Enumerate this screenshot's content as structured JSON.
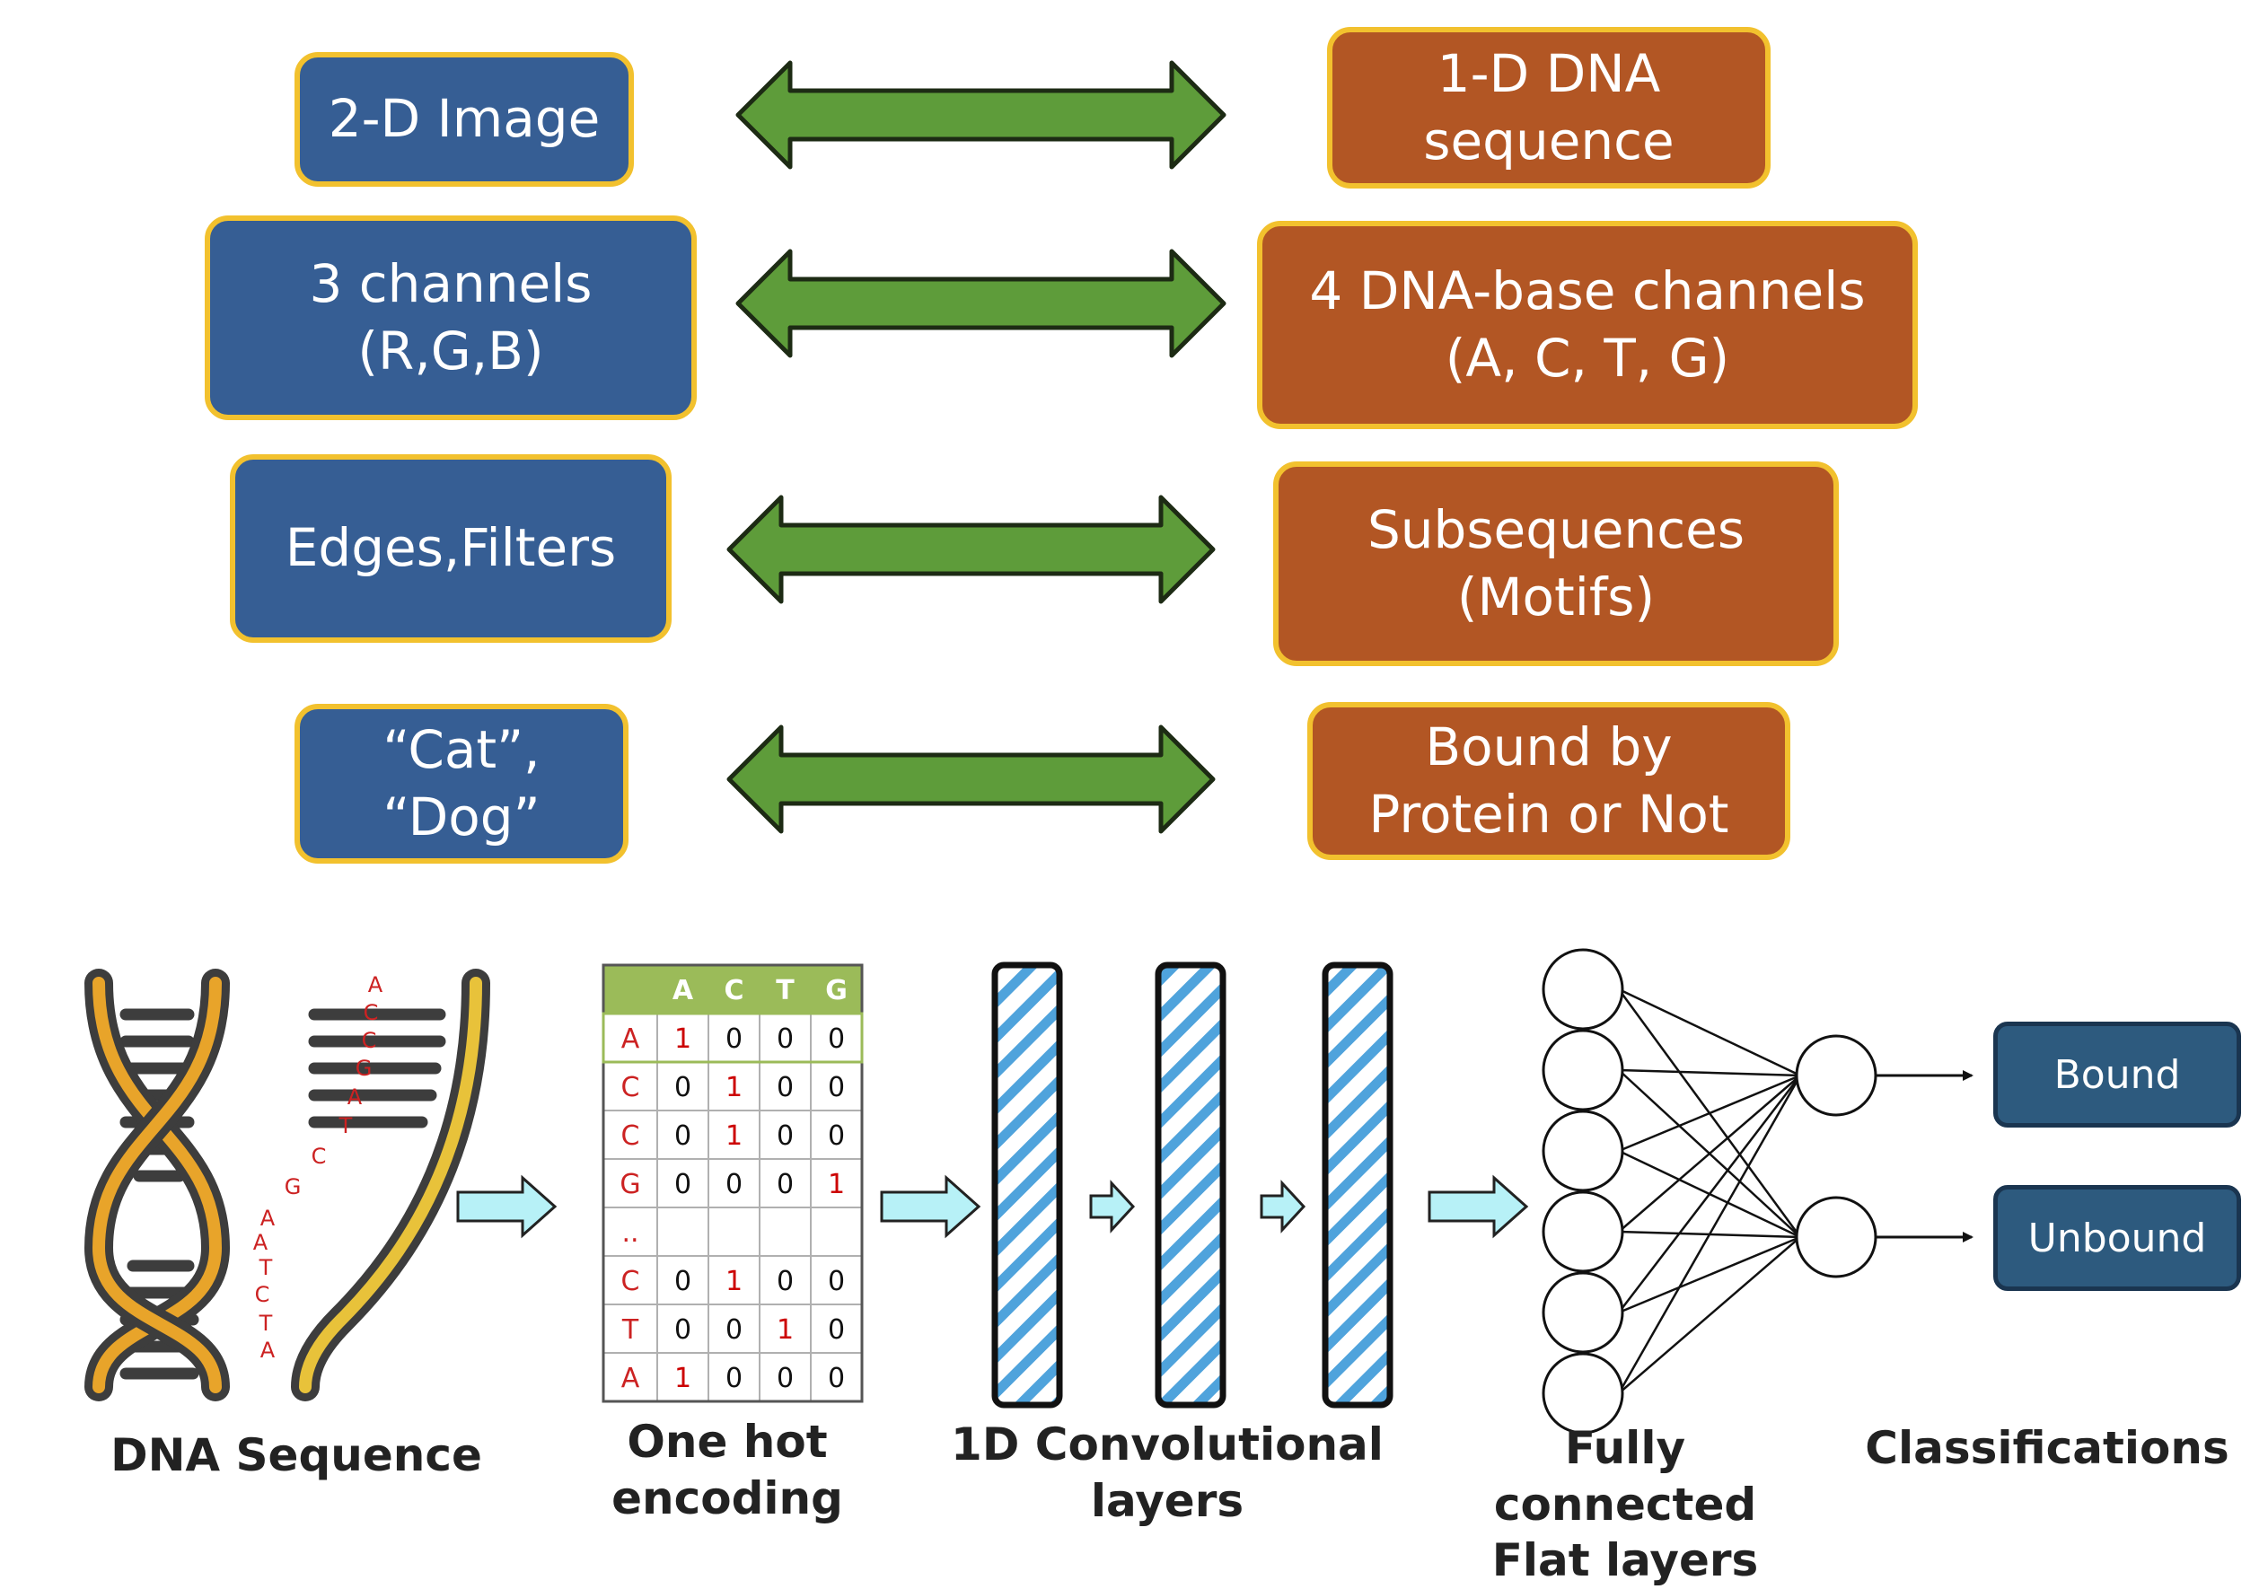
{
  "analogy": {
    "left": [
      {
        "text": "2-D Image"
      },
      {
        "text": "3 channels\n(R,G,B)"
      },
      {
        "text": "Edges,Filters"
      },
      {
        "text": "“Cat”,\n“Dog”"
      }
    ],
    "right": [
      {
        "text": "1-D DNA\nsequence"
      },
      {
        "text": "4 DNA-base channels\n(A, C, T, G)"
      },
      {
        "text": "Subsequences\n(Motifs)"
      },
      {
        "text": "Bound by\nProtein or Not"
      }
    ]
  },
  "pipeline": {
    "dna_letters": [
      "A",
      "C",
      "C",
      "G",
      "A",
      "T",
      "C",
      "G",
      "A",
      "A",
      "T",
      "C",
      "T",
      "A"
    ],
    "onehot": {
      "headers": [
        "A",
        "C",
        "T",
        "G"
      ],
      "rows": [
        {
          "base": "A",
          "values": [
            "1",
            "0",
            "0",
            "0"
          ]
        },
        {
          "base": "C",
          "values": [
            "0",
            "1",
            "0",
            "0"
          ]
        },
        {
          "base": "C",
          "values": [
            "0",
            "1",
            "0",
            "0"
          ]
        },
        {
          "base": "G",
          "values": [
            "0",
            "0",
            "0",
            "1"
          ]
        },
        {
          "base": "..",
          "values": [
            "",
            "",
            "",
            ""
          ]
        },
        {
          "base": "C",
          "values": [
            "0",
            "1",
            "0",
            "0"
          ]
        },
        {
          "base": "T",
          "values": [
            "0",
            "0",
            "1",
            "0"
          ]
        },
        {
          "base": "A",
          "values": [
            "1",
            "0",
            "0",
            "0"
          ]
        }
      ]
    },
    "classes": [
      "Bound",
      "Unbound"
    ],
    "captions": {
      "dna": "DNA Sequence",
      "onehot": "One hot\nencoding",
      "conv": "1D Convolutional\nlayers",
      "fc": "Fully connected\nFlat layers",
      "cls": "Classifications"
    }
  },
  "colors": {
    "blue_box": "#365e94",
    "orange_box": "#b25624",
    "box_border": "#f2c12e",
    "arrow_green": "#5e9c3a",
    "table_header": "#9bbb59",
    "highlight_red": "#cc0000",
    "class_box": "#2d5a7e"
  }
}
